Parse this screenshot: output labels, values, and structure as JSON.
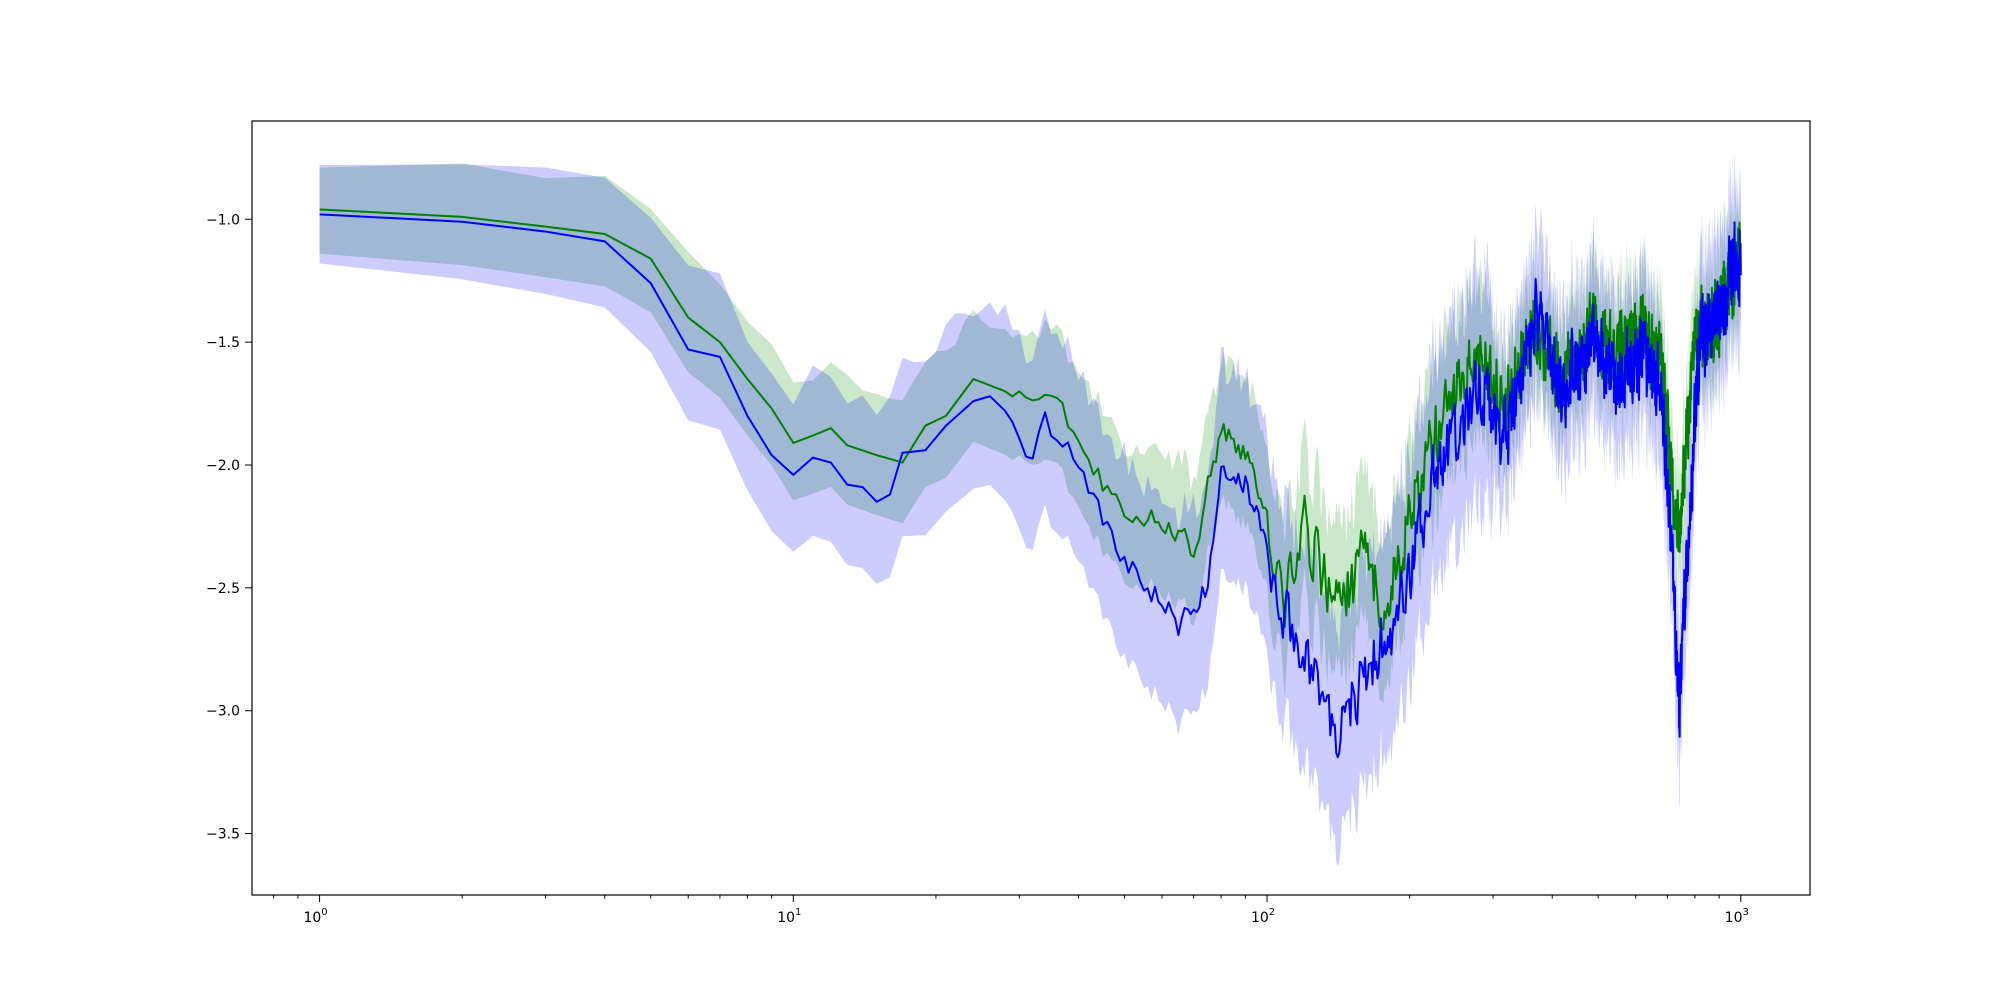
{
  "chart_data": {
    "type": "line",
    "title": "",
    "xlabel": "",
    "ylabel": "",
    "xscale": "log",
    "xlim": [
      0.72,
      1400
    ],
    "ylim": [
      -3.75,
      -0.6
    ],
    "grid": false,
    "legend": "none",
    "x_ticks": [
      {
        "base": "10",
        "exp": "0",
        "value": 1
      },
      {
        "base": "10",
        "exp": "1",
        "value": 10
      },
      {
        "base": "10",
        "exp": "2",
        "value": 100
      },
      {
        "base": "10",
        "exp": "3",
        "value": 1000
      }
    ],
    "y_ticks": [
      {
        "label": "−1.0",
        "value": -1.0
      },
      {
        "label": "−1.5",
        "value": -1.5
      },
      {
        "label": "−2.0",
        "value": -2.0
      },
      {
        "label": "−2.5",
        "value": -2.5
      },
      {
        "label": "−3.0",
        "value": -3.0
      },
      {
        "label": "−3.5",
        "value": -3.5
      }
    ],
    "series": [
      {
        "color": "#008000",
        "band_color": "#2ca02c",
        "band_opacity": 0.25,
        "band_halfwidth_lo": 0.18,
        "band_halfwidth_hi": 0.3,
        "anchors": [
          [
            1,
            -0.96
          ],
          [
            2,
            -0.99
          ],
          [
            3,
            -1.03
          ],
          [
            4,
            -1.06
          ],
          [
            5,
            -1.16
          ],
          [
            6,
            -1.4
          ],
          [
            7,
            -1.5
          ],
          [
            8,
            -1.65
          ],
          [
            9,
            -1.77
          ],
          [
            10,
            -1.91
          ],
          [
            11,
            -1.88
          ],
          [
            12,
            -1.85
          ],
          [
            13,
            -1.92
          ],
          [
            15,
            -1.96
          ],
          [
            17,
            -1.99
          ],
          [
            19,
            -1.84
          ],
          [
            21,
            -1.8
          ],
          [
            24,
            -1.65
          ],
          [
            28,
            -1.7
          ],
          [
            32,
            -1.78
          ],
          [
            35,
            -1.75
          ],
          [
            40,
            -1.9
          ],
          [
            45,
            -2.08
          ],
          [
            50,
            -2.2
          ],
          [
            60,
            -2.25
          ],
          [
            70,
            -2.35
          ],
          [
            80,
            -1.85
          ],
          [
            90,
            -1.95
          ],
          [
            100,
            -2.25
          ],
          [
            110,
            -2.55
          ],
          [
            120,
            -2.25
          ],
          [
            140,
            -2.6
          ],
          [
            160,
            -2.4
          ],
          [
            180,
            -2.55
          ],
          [
            200,
            -2.2
          ],
          [
            220,
            -1.95
          ],
          [
            250,
            -1.7
          ],
          [
            280,
            -1.55
          ],
          [
            320,
            -1.75
          ],
          [
            370,
            -1.45
          ],
          [
            420,
            -1.65
          ],
          [
            480,
            -1.45
          ],
          [
            550,
            -1.55
          ],
          [
            620,
            -1.45
          ],
          [
            680,
            -1.6
          ],
          [
            740,
            -2.3
          ],
          [
            800,
            -1.45
          ],
          [
            900,
            -1.4
          ],
          [
            1000,
            -1.15
          ]
        ]
      },
      {
        "color": "#0000ff",
        "band_color": "#0000ff",
        "band_opacity": 0.2,
        "band_halfwidth_lo": 0.2,
        "band_halfwidth_hi": 0.45,
        "anchors": [
          [
            1,
            -0.98
          ],
          [
            2,
            -1.01
          ],
          [
            3,
            -1.05
          ],
          [
            4,
            -1.09
          ],
          [
            5,
            -1.26
          ],
          [
            6,
            -1.53
          ],
          [
            7,
            -1.56
          ],
          [
            8,
            -1.8
          ],
          [
            9,
            -1.96
          ],
          [
            10,
            -2.04
          ],
          [
            11,
            -1.97
          ],
          [
            12,
            -1.99
          ],
          [
            13,
            -2.08
          ],
          [
            14,
            -2.09
          ],
          [
            15,
            -2.15
          ],
          [
            16,
            -2.12
          ],
          [
            17,
            -1.95
          ],
          [
            19,
            -1.94
          ],
          [
            21,
            -1.84
          ],
          [
            24,
            -1.74
          ],
          [
            26,
            -1.72
          ],
          [
            28,
            -1.78
          ],
          [
            32,
            -1.95
          ],
          [
            34,
            -1.82
          ],
          [
            36,
            -1.88
          ],
          [
            40,
            -2.0
          ],
          [
            45,
            -2.25
          ],
          [
            50,
            -2.38
          ],
          [
            55,
            -2.5
          ],
          [
            60,
            -2.55
          ],
          [
            65,
            -2.65
          ],
          [
            70,
            -2.55
          ],
          [
            75,
            -2.5
          ],
          [
            80,
            -2.0
          ],
          [
            90,
            -2.05
          ],
          [
            100,
            -2.35
          ],
          [
            110,
            -2.6
          ],
          [
            120,
            -2.75
          ],
          [
            140,
            -3.1
          ],
          [
            160,
            -2.85
          ],
          [
            180,
            -2.7
          ],
          [
            200,
            -2.45
          ],
          [
            220,
            -2.1
          ],
          [
            250,
            -1.85
          ],
          [
            280,
            -1.65
          ],
          [
            320,
            -1.9
          ],
          [
            370,
            -1.4
          ],
          [
            420,
            -1.7
          ],
          [
            480,
            -1.5
          ],
          [
            550,
            -1.65
          ],
          [
            620,
            -1.55
          ],
          [
            680,
            -1.7
          ],
          [
            720,
            -2.4
          ],
          [
            740,
            -3.0
          ],
          [
            780,
            -2.2
          ],
          [
            820,
            -1.5
          ],
          [
            900,
            -1.4
          ],
          [
            960,
            -1.2
          ],
          [
            1000,
            -1.15
          ]
        ]
      }
    ]
  }
}
